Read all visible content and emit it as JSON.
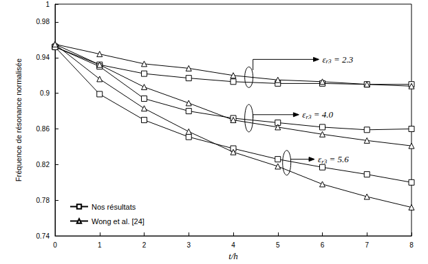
{
  "chart_data": {
    "type": "line",
    "x_label": "t/h",
    "y_label": "Fréquence de résonance normalisée",
    "x": [
      0,
      1,
      2,
      3,
      4,
      5,
      6,
      7,
      8
    ],
    "xlim": [
      0,
      8
    ],
    "xticks": [
      0,
      1,
      2,
      3,
      4,
      5,
      6,
      7,
      8
    ],
    "ylim": [
      0.74,
      1
    ],
    "yticks": [
      0.74,
      0.78,
      0.82,
      0.86,
      0.9,
      0.94,
      0.98,
      1
    ],
    "grid": false,
    "legend": "lower left",
    "annotations": [
      "εr3 = 2.3",
      "εr3 = 4.0",
      "εr3 = 5.6"
    ],
    "series": [
      {
        "name": "Nos résultats",
        "color": "#000000",
        "marker": "square",
        "line_style": "solid",
        "values": [
          0.952,
          0.932,
          0.922,
          0.917,
          0.913,
          0.911,
          0.911,
          0.91,
          0.91
        ]
      },
      {
        "name": "Wong et al. [24]",
        "color": "#000000",
        "marker": "triangle",
        "line_style": "solid",
        "values": [
          0.955,
          0.944,
          0.933,
          0.928,
          0.92,
          0.915,
          0.913,
          0.91,
          0.908
        ]
      },
      {
        "name": "Nos résultats",
        "color": "#000000",
        "marker": "square",
        "line_style": "solid",
        "values": [
          0.952,
          0.93,
          0.894,
          0.88,
          0.872,
          0.867,
          0.862,
          0.859,
          0.86
        ]
      },
      {
        "name": "Wong et al. [24]",
        "color": "#000000",
        "marker": "triangle",
        "line_style": "solid",
        "values": [
          0.955,
          0.932,
          0.907,
          0.889,
          0.87,
          0.862,
          0.854,
          0.847,
          0.841
        ]
      },
      {
        "name": "Nos résultats",
        "color": "#000000",
        "marker": "square",
        "line_style": "solid",
        "values": [
          0.952,
          0.899,
          0.87,
          0.851,
          0.838,
          0.826,
          0.817,
          0.809,
          0.8
        ]
      },
      {
        "name": "Wong et al. [24]",
        "color": "#000000",
        "marker": "triangle",
        "line_style": "solid",
        "values": [
          0.955,
          0.916,
          0.883,
          0.857,
          0.834,
          0.818,
          0.798,
          0.784,
          0.772
        ]
      }
    ]
  }
}
